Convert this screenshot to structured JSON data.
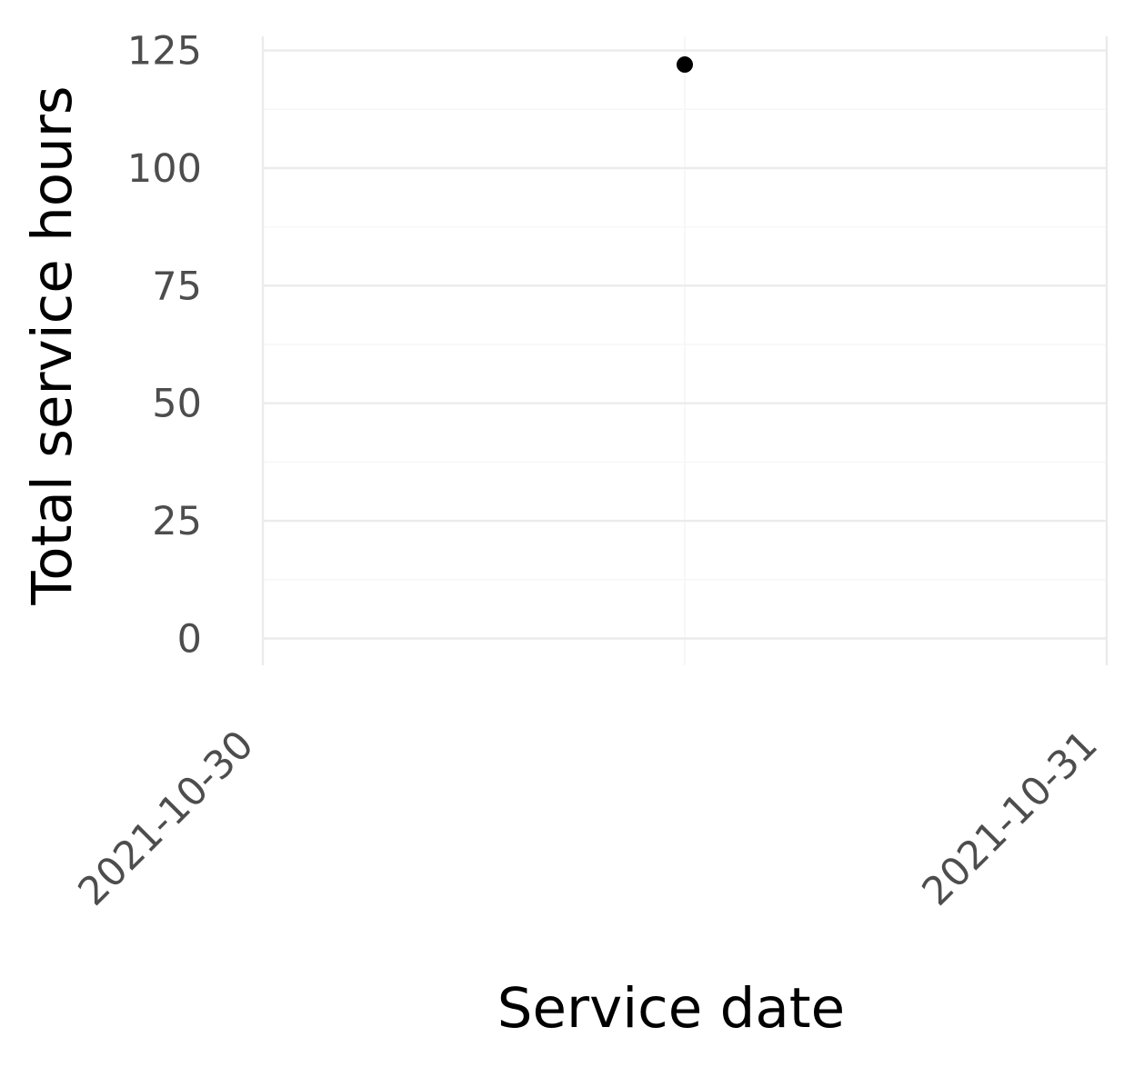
{
  "chart_data": {
    "type": "scatter",
    "xlabel": "Service date",
    "ylabel": "Total service hours",
    "x_ticks": [
      "2021-10-30",
      "2021-10-31"
    ],
    "xlim": [
      "2021-10-30T00:00",
      "2021-10-31T00:00"
    ],
    "y_ticks": [
      0,
      25,
      50,
      75,
      100,
      125
    ],
    "ylim": [
      -5.7,
      128
    ],
    "grid": true,
    "legend": "none",
    "series": [
      {
        "points": [
          {
            "x": "2021-10-30T12:00",
            "y": 122
          }
        ],
        "color": "#000000"
      }
    ]
  }
}
